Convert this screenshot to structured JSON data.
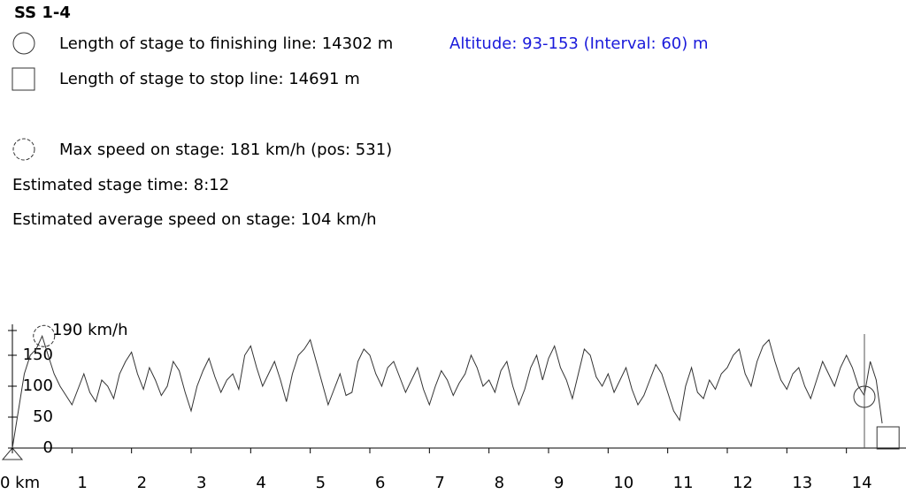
{
  "header": {
    "title": "SS 1-4",
    "finish_text": "Length of stage to finishing line: 14302 m",
    "altitude_text": "Altitude: 93-153 (Interval: 60) m",
    "stop_text": "Length of stage to stop line: 14691 m",
    "max_speed_text": "Max speed on stage: 181 km/h (pos: 531)",
    "time_text": "Estimated stage time: 8:12",
    "avg_text": "Estimated average speed on stage: 104 km/h"
  },
  "chart_data": {
    "type": "line",
    "color": "#333333",
    "x": [
      0,
      0.1,
      0.2,
      0.3,
      0.4,
      0.5,
      0.6,
      0.7,
      0.8,
      0.9,
      1,
      1.1,
      1.2,
      1.3,
      1.4,
      1.5,
      1.6,
      1.7,
      1.8,
      1.9,
      2,
      2.1,
      2.2,
      2.3,
      2.4,
      2.5,
      2.6,
      2.7,
      2.8,
      2.9,
      3,
      3.1,
      3.2,
      3.3,
      3.4,
      3.5,
      3.6,
      3.7,
      3.8,
      3.9,
      4,
      4.1,
      4.2,
      4.3,
      4.4,
      4.5,
      4.6,
      4.7,
      4.8,
      4.9,
      5,
      5.1,
      5.2,
      5.3,
      5.4,
      5.5,
      5.6,
      5.7,
      5.8,
      5.9,
      6,
      6.1,
      6.2,
      6.3,
      6.4,
      6.5,
      6.6,
      6.7,
      6.8,
      6.9,
      7,
      7.1,
      7.2,
      7.3,
      7.4,
      7.5,
      7.6,
      7.7,
      7.8,
      7.9,
      8,
      8.1,
      8.2,
      8.3,
      8.4,
      8.5,
      8.6,
      8.7,
      8.8,
      8.9,
      9,
      9.1,
      9.2,
      9.3,
      9.4,
      9.5,
      9.6,
      9.7,
      9.8,
      9.9,
      10,
      10.1,
      10.2,
      10.3,
      10.4,
      10.5,
      10.6,
      10.7,
      10.8,
      10.9,
      11,
      11.1,
      11.2,
      11.3,
      11.4,
      11.5,
      11.6,
      11.7,
      11.8,
      11.9,
      12,
      12.1,
      12.2,
      12.3,
      12.4,
      12.5,
      12.6,
      12.7,
      12.8,
      12.9,
      13,
      13.1,
      13.2,
      13.3,
      13.4,
      13.5,
      13.6,
      13.7,
      13.8,
      13.9,
      14,
      14.1,
      14.2,
      14.3,
      14.4,
      14.5,
      14.6
    ],
    "values": [
      0,
      60,
      120,
      150,
      160,
      181,
      150,
      120,
      100,
      85,
      70,
      95,
      120,
      90,
      75,
      110,
      100,
      80,
      120,
      140,
      155,
      120,
      95,
      130,
      110,
      85,
      100,
      140,
      125,
      90,
      60,
      100,
      125,
      145,
      115,
      90,
      110,
      120,
      95,
      150,
      165,
      130,
      100,
      120,
      140,
      110,
      75,
      120,
      150,
      160,
      175,
      140,
      105,
      70,
      95,
      120,
      85,
      90,
      140,
      160,
      150,
      120,
      100,
      130,
      140,
      115,
      90,
      110,
      130,
      95,
      70,
      100,
      125,
      110,
      85,
      105,
      120,
      150,
      130,
      100,
      110,
      90,
      125,
      140,
      100,
      70,
      95,
      130,
      150,
      110,
      145,
      165,
      130,
      110,
      80,
      120,
      160,
      150,
      115,
      100,
      120,
      90,
      110,
      130,
      95,
      70,
      85,
      110,
      135,
      120,
      90,
      60,
      45,
      100,
      130,
      90,
      80,
      110,
      95,
      120,
      130,
      150,
      160,
      120,
      100,
      140,
      165,
      175,
      140,
      110,
      95,
      120,
      130,
      100,
      80,
      110,
      140,
      120,
      100,
      130,
      150,
      130,
      100,
      85,
      140,
      110,
      40
    ],
    "xlim": [
      0,
      15
    ],
    "ylim": [
      0,
      200
    ],
    "xticks": [
      {
        "value": 0,
        "label": "0 km"
      },
      1,
      2,
      3,
      4,
      5,
      6,
      7,
      8,
      9,
      10,
      11,
      12,
      13,
      14
    ],
    "yticks": [
      0,
      50,
      100,
      150,
      {
        "value": 190,
        "label": "190 km/h"
      }
    ],
    "max_point": {
      "x": 0.531,
      "y": 181
    },
    "finish_x": 14.302,
    "stop_x": 14.691
  }
}
